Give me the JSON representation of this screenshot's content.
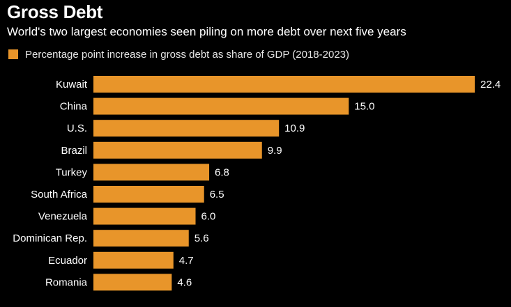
{
  "title": "Gross Debt",
  "subtitle": "World's two largest economies seen piling on more debt over next five years",
  "legend": {
    "label": "Percentage point increase in gross debt as share of GDP (2018-2023)"
  },
  "colors": {
    "bar": "#e8952a",
    "background": "#000000",
    "text": "#ffffff"
  },
  "chart_data": {
    "type": "bar",
    "orientation": "horizontal",
    "categories": [
      "Kuwait",
      "China",
      "U.S.",
      "Brazil",
      "Turkey",
      "South Africa",
      "Venezuela",
      "Dominican Rep.",
      "Ecuador",
      "Romania"
    ],
    "series": [
      {
        "name": "Percentage point increase in gross debt as share of GDP (2018-2023)",
        "values": [
          22.4,
          15.0,
          10.9,
          9.9,
          6.8,
          6.5,
          6.0,
          5.6,
          4.7,
          4.6
        ],
        "labels": [
          "22.4",
          "15.0",
          "10.9",
          "9.9",
          "6.8",
          "6.5",
          "6.0",
          "5.6",
          "4.7",
          "4.6"
        ]
      }
    ],
    "xlim": [
      0,
      22.4
    ],
    "grid": false,
    "legend_position": "top-left"
  }
}
